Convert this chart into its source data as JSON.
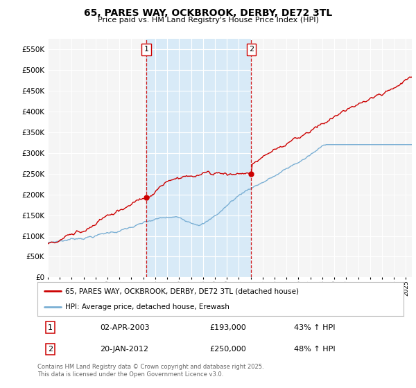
{
  "title": "65, PARES WAY, OCKBROOK, DERBY, DE72 3TL",
  "subtitle": "Price paid vs. HM Land Registry's House Price Index (HPI)",
  "yticks": [
    0,
    50000,
    100000,
    150000,
    200000,
    250000,
    300000,
    350000,
    400000,
    450000,
    500000,
    550000
  ],
  "ylim": [
    0,
    575000
  ],
  "xlim_start": 1995.0,
  "xlim_end": 2025.5,
  "sale1_date": 2003.25,
  "sale1_price": 193000,
  "sale1_label": "1",
  "sale1_text": "02-APR-2003",
  "sale1_pct": "43% ↑ HPI",
  "sale2_date": 2012.05,
  "sale2_price": 250000,
  "sale2_label": "2",
  "sale2_text": "20-JAN-2012",
  "sale2_pct": "48% ↑ HPI",
  "property_color": "#cc0000",
  "hpi_color": "#7aafd4",
  "vline_color": "#cc0000",
  "shade_color": "#d8eaf7",
  "legend_property": "65, PARES WAY, OCKBROOK, DERBY, DE72 3TL (detached house)",
  "legend_hpi": "HPI: Average price, detached house, Erewash",
  "footnote": "Contains HM Land Registry data © Crown copyright and database right 2025.\nThis data is licensed under the Open Government Licence v3.0.",
  "background_color": "#ffffff",
  "plot_bg_color": "#f5f5f5",
  "grid_color": "#ffffff"
}
